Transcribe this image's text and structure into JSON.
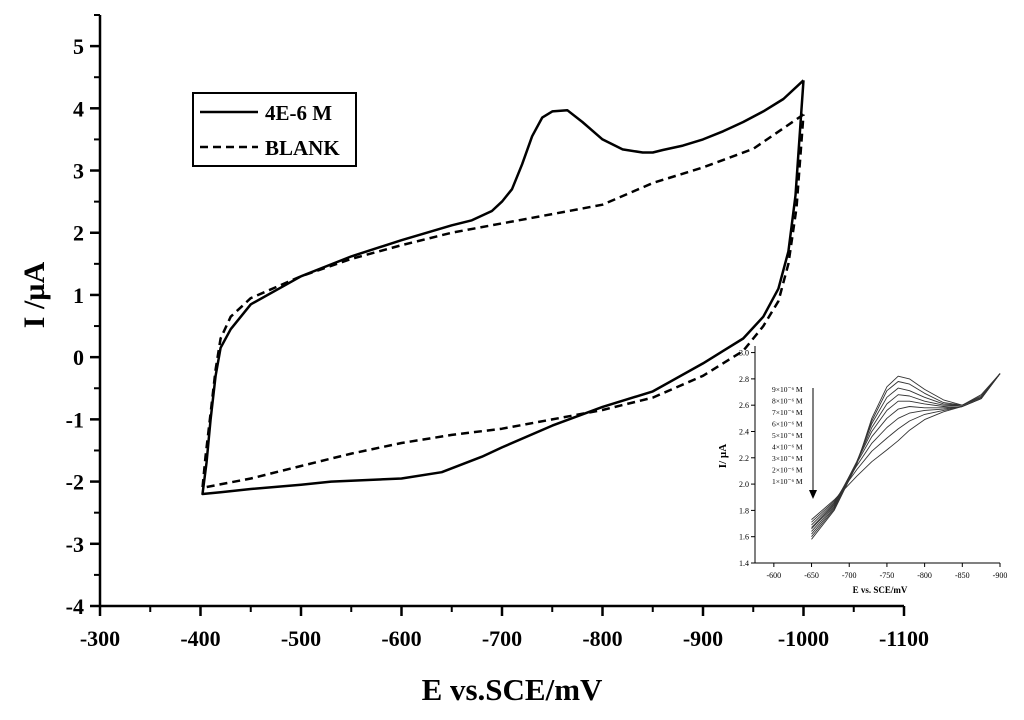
{
  "colors": {
    "line": "#000000",
    "background": "#ffffff"
  },
  "chart_data": [
    {
      "type": "line",
      "title": "",
      "xlabel": "E vs.SCE/mV",
      "ylabel": "I /µA",
      "xlim": [
        -300,
        -1100
      ],
      "ylim": [
        -4,
        5.5
      ],
      "xticks": [
        -300,
        -400,
        -500,
        -600,
        -700,
        -800,
        -900,
        -1000,
        -1100
      ],
      "yticks": [
        -4,
        -3,
        -2,
        -1,
        0,
        1,
        2,
        3,
        4,
        5
      ],
      "grid": false,
      "legend_position": "top-left",
      "series": [
        {
          "name": "4E-6 M",
          "style": "solid",
          "points": [
            [
              -1000,
              4.45
            ],
            [
              -980,
              4.15
            ],
            [
              -960,
              3.95
            ],
            [
              -940,
              3.78
            ],
            [
              -920,
              3.63
            ],
            [
              -900,
              3.5
            ],
            [
              -880,
              3.4
            ],
            [
              -860,
              3.33
            ],
            [
              -850,
              3.29
            ],
            [
              -840,
              3.29
            ],
            [
              -820,
              3.34
            ],
            [
              -800,
              3.5
            ],
            [
              -780,
              3.78
            ],
            [
              -765,
              3.97
            ],
            [
              -750,
              3.95
            ],
            [
              -740,
              3.85
            ],
            [
              -730,
              3.55
            ],
            [
              -720,
              3.1
            ],
            [
              -710,
              2.7
            ],
            [
              -700,
              2.5
            ],
            [
              -690,
              2.35
            ],
            [
              -670,
              2.2
            ],
            [
              -650,
              2.12
            ],
            [
              -600,
              1.88
            ],
            [
              -550,
              1.62
            ],
            [
              -500,
              1.3
            ],
            [
              -450,
              0.85
            ],
            [
              -430,
              0.45
            ],
            [
              -420,
              0.15
            ],
            [
              -415,
              -0.3
            ],
            [
              -410,
              -1.0
            ],
            [
              -406,
              -1.7
            ],
            [
              -402,
              -2.2
            ],
            [
              -420,
              -2.17
            ],
            [
              -450,
              -2.12
            ],
            [
              -500,
              -2.05
            ],
            [
              -530,
              -2.0
            ],
            [
              -600,
              -1.95
            ],
            [
              -640,
              -1.85
            ],
            [
              -680,
              -1.6
            ],
            [
              -700,
              -1.45
            ],
            [
              -750,
              -1.1
            ],
            [
              -800,
              -0.8
            ],
            [
              -850,
              -0.55
            ],
            [
              -900,
              -0.1
            ],
            [
              -920,
              0.1
            ],
            [
              -940,
              0.3
            ],
            [
              -960,
              0.65
            ],
            [
              -975,
              1.1
            ],
            [
              -985,
              1.7
            ],
            [
              -992,
              2.6
            ],
            [
              -1000,
              4.45
            ]
          ]
        },
        {
          "name": "BLANK",
          "style": "dashed",
          "points": [
            [
              -1000,
              3.9
            ],
            [
              -950,
              3.35
            ],
            [
              -900,
              3.05
            ],
            [
              -850,
              2.8
            ],
            [
              -800,
              2.45
            ],
            [
              -750,
              2.3
            ],
            [
              -700,
              2.15
            ],
            [
              -650,
              2.0
            ],
            [
              -600,
              1.8
            ],
            [
              -550,
              1.58
            ],
            [
              -500,
              1.3
            ],
            [
              -450,
              0.95
            ],
            [
              -430,
              0.65
            ],
            [
              -420,
              0.3
            ],
            [
              -415,
              -0.2
            ],
            [
              -410,
              -0.9
            ],
            [
              -405,
              -1.6
            ],
            [
              -402,
              -2.1
            ],
            [
              -450,
              -1.95
            ],
            [
              -500,
              -1.75
            ],
            [
              -550,
              -1.55
            ],
            [
              -600,
              -1.38
            ],
            [
              -650,
              -1.25
            ],
            [
              -700,
              -1.15
            ],
            [
              -750,
              -1.0
            ],
            [
              -800,
              -0.85
            ],
            [
              -850,
              -0.65
            ],
            [
              -900,
              -0.3
            ],
            [
              -940,
              0.1
            ],
            [
              -960,
              0.5
            ],
            [
              -975,
              0.9
            ],
            [
              -985,
              1.5
            ],
            [
              -993,
              2.4
            ],
            [
              -1000,
              3.9
            ]
          ]
        }
      ]
    },
    {
      "type": "line",
      "title": "",
      "xlabel": "E vs. SCE/mV",
      "ylabel": "I/ µA",
      "xlim": [
        -575,
        -900
      ],
      "ylim": [
        1.4,
        3.05
      ],
      "xticks": [
        -600,
        -650,
        -700,
        -750,
        -800,
        -850,
        -900
      ],
      "yticks": [
        1.4,
        1.6,
        1.8,
        2.0,
        2.2,
        2.4,
        2.6,
        2.8,
        3.0
      ],
      "grid": false,
      "arrow_direction": "down",
      "legend_labels": [
        "9×10⁻⁶ M",
        "8×10⁻⁶ M",
        "7×10⁻⁶ M",
        "6×10⁻⁶ M",
        "5×10⁻⁶ M",
        "4×10⁻⁶ M",
        "3×10⁻⁶ M",
        "2×10⁻⁶ M",
        "1×10⁻⁶ M"
      ],
      "series": [
        {
          "points": [
            [
              -650,
              1.58
            ],
            [
              -680,
              1.8
            ],
            [
              -710,
              2.15
            ],
            [
              -730,
              2.5
            ],
            [
              -750,
              2.74
            ],
            [
              -765,
              2.82
            ],
            [
              -780,
              2.8
            ],
            [
              -800,
              2.72
            ],
            [
              -825,
              2.64
            ],
            [
              -850,
              2.6
            ],
            [
              -875,
              2.68
            ],
            [
              -900,
              2.84
            ]
          ]
        },
        {
          "points": [
            [
              -650,
              1.6
            ],
            [
              -680,
              1.81
            ],
            [
              -710,
              2.16
            ],
            [
              -730,
              2.48
            ],
            [
              -750,
              2.71
            ],
            [
              -765,
              2.78
            ],
            [
              -780,
              2.76
            ],
            [
              -800,
              2.69
            ],
            [
              -825,
              2.62
            ],
            [
              -850,
              2.6
            ],
            [
              -875,
              2.67
            ],
            [
              -900,
              2.84
            ]
          ]
        },
        {
          "points": [
            [
              -650,
              1.62
            ],
            [
              -680,
              1.82
            ],
            [
              -710,
              2.17
            ],
            [
              -730,
              2.46
            ],
            [
              -750,
              2.66
            ],
            [
              -765,
              2.73
            ],
            [
              -780,
              2.71
            ],
            [
              -800,
              2.66
            ],
            [
              -825,
              2.61
            ],
            [
              -850,
              2.6
            ],
            [
              -875,
              2.66
            ],
            [
              -900,
              2.84
            ]
          ]
        },
        {
          "points": [
            [
              -650,
              1.64
            ],
            [
              -680,
              1.83
            ],
            [
              -710,
              2.17
            ],
            [
              -730,
              2.43
            ],
            [
              -750,
              2.61
            ],
            [
              -765,
              2.68
            ],
            [
              -780,
              2.67
            ],
            [
              -800,
              2.63
            ],
            [
              -825,
              2.6
            ],
            [
              -850,
              2.6
            ],
            [
              -875,
              2.66
            ],
            [
              -900,
              2.84
            ]
          ]
        },
        {
          "points": [
            [
              -650,
              1.66
            ],
            [
              -680,
              1.84
            ],
            [
              -710,
              2.17
            ],
            [
              -730,
              2.4
            ],
            [
              -750,
              2.56
            ],
            [
              -765,
              2.63
            ],
            [
              -780,
              2.63
            ],
            [
              -800,
              2.61
            ],
            [
              -825,
              2.59
            ],
            [
              -850,
              2.6
            ],
            [
              -875,
              2.66
            ],
            [
              -900,
              2.84
            ]
          ]
        },
        {
          "points": [
            [
              -650,
              1.67
            ],
            [
              -680,
              1.85
            ],
            [
              -710,
              2.16
            ],
            [
              -730,
              2.36
            ],
            [
              -750,
              2.5
            ],
            [
              -765,
              2.57
            ],
            [
              -780,
              2.59
            ],
            [
              -800,
              2.58
            ],
            [
              -825,
              2.58
            ],
            [
              -850,
              2.59
            ],
            [
              -875,
              2.65
            ],
            [
              -900,
              2.84
            ]
          ]
        },
        {
          "points": [
            [
              -650,
              1.69
            ],
            [
              -680,
              1.86
            ],
            [
              -710,
              2.14
            ],
            [
              -730,
              2.31
            ],
            [
              -750,
              2.43
            ],
            [
              -765,
              2.5
            ],
            [
              -780,
              2.54
            ],
            [
              -800,
              2.56
            ],
            [
              -825,
              2.57
            ],
            [
              -850,
              2.59
            ],
            [
              -875,
              2.65
            ],
            [
              -900,
              2.84
            ]
          ]
        },
        {
          "points": [
            [
              -650,
              1.71
            ],
            [
              -680,
              1.87
            ],
            [
              -710,
              2.11
            ],
            [
              -730,
              2.25
            ],
            [
              -750,
              2.35
            ],
            [
              -765,
              2.42
            ],
            [
              -780,
              2.48
            ],
            [
              -800,
              2.53
            ],
            [
              -825,
              2.56
            ],
            [
              -850,
              2.59
            ],
            [
              -875,
              2.65
            ],
            [
              -900,
              2.84
            ]
          ]
        },
        {
          "points": [
            [
              -650,
              1.73
            ],
            [
              -680,
              1.88
            ],
            [
              -710,
              2.06
            ],
            [
              -730,
              2.17
            ],
            [
              -750,
              2.26
            ],
            [
              -765,
              2.33
            ],
            [
              -780,
              2.41
            ],
            [
              -800,
              2.49
            ],
            [
              -825,
              2.55
            ],
            [
              -850,
              2.59
            ],
            [
              -875,
              2.65
            ],
            [
              -900,
              2.84
            ]
          ]
        }
      ]
    }
  ]
}
